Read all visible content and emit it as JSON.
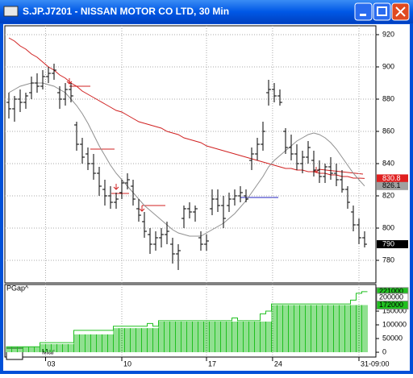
{
  "window": {
    "title": "S.JP.J7201 - NISSAN MOTOR CO LTD, 30 Min"
  },
  "chart_data": {
    "type": "ohlc",
    "ohlc": [
      [
        878,
        884,
        868,
        874
      ],
      [
        874,
        882,
        866,
        880
      ],
      [
        880,
        886,
        872,
        878
      ],
      [
        878,
        884,
        874,
        882
      ],
      [
        884,
        894,
        880,
        890
      ],
      [
        890,
        896,
        884,
        888
      ],
      [
        888,
        898,
        886,
        894
      ],
      [
        894,
        900,
        890,
        896
      ],
      [
        896,
        902,
        892,
        898
      ],
      [
        884,
        888,
        874,
        880
      ],
      [
        880,
        890,
        876,
        886
      ],
      [
        886,
        890,
        878,
        882
      ],
      [
        864,
        866,
        848,
        852
      ],
      [
        852,
        856,
        840,
        844
      ],
      [
        846,
        850,
        836,
        840
      ],
      [
        840,
        846,
        830,
        834
      ],
      [
        834,
        838,
        820,
        826
      ],
      [
        824,
        830,
        814,
        820
      ],
      [
        820,
        826,
        812,
        816
      ],
      [
        816,
        822,
        812,
        818
      ],
      [
        822,
        830,
        818,
        828
      ],
      [
        828,
        834,
        824,
        830
      ],
      [
        826,
        830,
        814,
        818
      ],
      [
        812,
        818,
        804,
        808
      ],
      [
        804,
        810,
        794,
        798
      ],
      [
        796,
        800,
        784,
        790
      ],
      [
        790,
        798,
        786,
        794
      ],
      [
        794,
        800,
        788,
        796
      ],
      [
        796,
        804,
        790,
        798
      ],
      [
        790,
        794,
        778,
        784
      ],
      [
        784,
        790,
        774,
        786
      ],
      [
        806,
        814,
        800,
        812
      ],
      [
        812,
        816,
        806,
        810
      ],
      [
        810,
        814,
        804,
        812
      ],
      [
        794,
        798,
        786,
        790
      ],
      [
        790,
        796,
        786,
        792
      ],
      [
        812,
        824,
        808,
        818
      ],
      [
        818,
        824,
        810,
        814
      ],
      [
        814,
        820,
        800,
        806
      ],
      [
        814,
        822,
        810,
        818
      ],
      [
        818,
        824,
        814,
        820
      ],
      [
        820,
        826,
        816,
        822
      ],
      [
        820,
        824,
        816,
        818
      ],
      [
        842,
        850,
        836,
        846
      ],
      [
        846,
        856,
        842,
        852
      ],
      [
        852,
        866,
        848,
        860
      ],
      [
        884,
        892,
        876,
        886
      ],
      [
        886,
        890,
        878,
        882
      ],
      [
        882,
        886,
        876,
        878
      ],
      [
        860,
        862,
        846,
        850
      ],
      [
        850,
        858,
        842,
        846
      ],
      [
        846,
        852,
        836,
        840
      ],
      [
        840,
        848,
        834,
        844
      ],
      [
        844,
        854,
        840,
        850
      ],
      [
        842,
        848,
        832,
        836
      ],
      [
        836,
        842,
        828,
        832
      ],
      [
        832,
        840,
        828,
        838
      ],
      [
        838,
        844,
        830,
        834
      ],
      [
        834,
        840,
        826,
        830
      ],
      [
        830,
        836,
        822,
        824
      ],
      [
        824,
        826,
        812,
        816
      ],
      [
        810,
        814,
        798,
        802
      ],
      [
        802,
        806,
        790,
        794
      ],
      [
        794,
        798,
        788,
        790
      ]
    ],
    "ma_long": {
      "color": "#d02020",
      "values": [
        918,
        916,
        913,
        911,
        908,
        906,
        903,
        900,
        898,
        895,
        893,
        890,
        888,
        885,
        883,
        881,
        879,
        877,
        875,
        873,
        872,
        870,
        868,
        866,
        865,
        864,
        863,
        862,
        860,
        859,
        858,
        856,
        855,
        854,
        853,
        851,
        850,
        849,
        848,
        847,
        846,
        845,
        844,
        843,
        842,
        841,
        840,
        839,
        838,
        837,
        837,
        836,
        836,
        835,
        835,
        834,
        834,
        833,
        833,
        832,
        832,
        831,
        831,
        830.8
      ]
    },
    "ma_short": {
      "color": "#909090",
      "values": [
        884,
        886,
        888,
        889,
        890,
        890,
        890,
        889,
        888,
        886,
        884,
        880,
        876,
        871,
        865,
        858,
        851,
        845,
        839,
        834,
        830,
        826,
        822,
        818,
        814,
        811,
        808,
        805,
        802,
        799,
        797,
        796,
        795,
        795,
        795,
        797,
        799,
        801,
        803,
        806,
        809,
        813,
        817,
        822,
        827,
        832,
        838,
        842,
        845,
        848,
        851,
        854,
        856,
        858,
        859,
        858,
        856,
        853,
        849,
        844,
        839,
        834,
        830,
        826.1
      ]
    },
    "ylim": [
      766.5,
      924.5
    ],
    "yticks": [
      780,
      800,
      820,
      840,
      860,
      880,
      900,
      920
    ],
    "price_markers": [
      {
        "value": 830.8,
        "color": "#e02020"
      },
      {
        "value": 826.1,
        "color": "#a0a0a0"
      },
      {
        "value": 790,
        "color": "#000000"
      }
    ],
    "xticks": [
      {
        "value": 6.5,
        "label": "03"
      },
      {
        "value": 20,
        "label": "10"
      },
      {
        "value": 35,
        "label": "17"
      },
      {
        "value": 46.7,
        "label": "24"
      },
      {
        "value": 62,
        "label": "31-09:00"
      }
    ],
    "month_label": "Mar",
    "grid": true,
    "indicator": {
      "title": "PGap^",
      "color": "#20c020",
      "bars": [
        20000,
        20000,
        20000,
        20000,
        20000,
        20000,
        30000,
        30000,
        30000,
        30000,
        30000,
        30000,
        65000,
        65000,
        65000,
        65000,
        65000,
        65000,
        65000,
        88000,
        88000,
        88000,
        88000,
        88000,
        88000,
        88000,
        88000,
        112000,
        112000,
        112000,
        112000,
        112000,
        112000,
        112000,
        112000,
        112000,
        112000,
        112000,
        112000,
        112000,
        112000,
        112000,
        112000,
        112000,
        112000,
        112000,
        112000,
        172000,
        172000,
        172000,
        172000,
        172000,
        172000,
        172000,
        172000,
        172000,
        172000,
        172000,
        172000,
        172000,
        172000,
        172000,
        172000,
        172000
      ],
      "line": [
        20000,
        20000,
        20000,
        20000,
        20000,
        20000,
        35000,
        35000,
        35000,
        35000,
        35000,
        35000,
        80000,
        80000,
        80000,
        80000,
        80000,
        80000,
        80000,
        95000,
        95000,
        95000,
        95000,
        95000,
        95000,
        105000,
        95000,
        115000,
        115000,
        115000,
        115000,
        115000,
        115000,
        115000,
        115000,
        115000,
        115000,
        115000,
        115000,
        115000,
        125000,
        115000,
        115000,
        115000,
        115000,
        140000,
        150000,
        176000,
        176000,
        176000,
        176000,
        176000,
        176000,
        176000,
        176000,
        176000,
        176000,
        176000,
        176000,
        176000,
        176000,
        190000,
        215000,
        221000
      ],
      "ylim": [
        -17500,
        250000
      ],
      "yticks": [
        0,
        50000,
        100000,
        150000
      ],
      "markers": [
        {
          "value": 221000,
          "color": "#20c020"
        },
        {
          "value": 200000,
          "color": "#ffffff"
        },
        {
          "value": 172000,
          "color": "#20c020"
        }
      ]
    }
  }
}
